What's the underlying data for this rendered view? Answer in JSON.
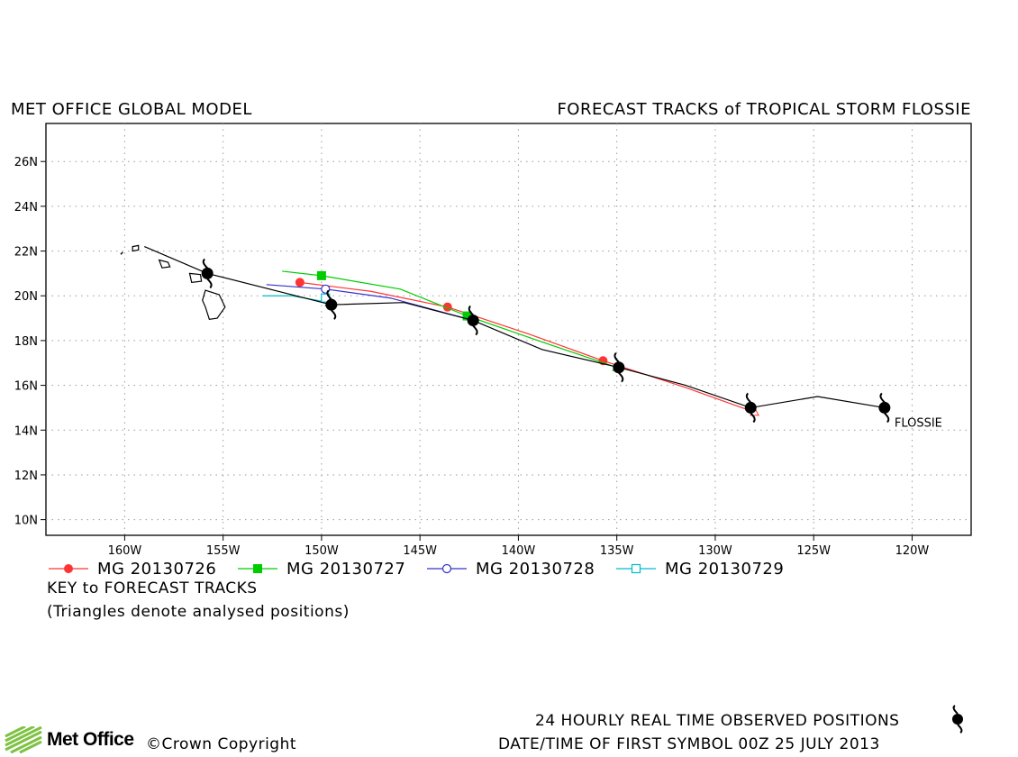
{
  "header": {
    "left_title": "MET OFFICE GLOBAL MODEL",
    "right_title": "FORECAST TRACKS of TROPICAL STORM FLOSSIE"
  },
  "map": {
    "lon_ticks": [
      {
        "value": -160,
        "label": "160W"
      },
      {
        "value": -155,
        "label": "155W"
      },
      {
        "value": -150,
        "label": "150W"
      },
      {
        "value": -145,
        "label": "145W"
      },
      {
        "value": -140,
        "label": "140W"
      },
      {
        "value": -135,
        "label": "135W"
      },
      {
        "value": -130,
        "label": "130W"
      },
      {
        "value": -125,
        "label": "125W"
      },
      {
        "value": -120,
        "label": "120W"
      }
    ],
    "lat_ticks": [
      {
        "value": 10,
        "label": "10N"
      },
      {
        "value": 12,
        "label": "12N"
      },
      {
        "value": 14,
        "label": "14N"
      },
      {
        "value": 16,
        "label": "16N"
      },
      {
        "value": 18,
        "label": "18N"
      },
      {
        "value": 20,
        "label": "20N"
      },
      {
        "value": 22,
        "label": "22N"
      },
      {
        "value": 24,
        "label": "24N"
      },
      {
        "value": 26,
        "label": "26N"
      }
    ],
    "lon_range": [
      -164,
      -117
    ],
    "lat_range": [
      9.3,
      27.7
    ],
    "grid": true,
    "storm_label": "FLOSSIE",
    "observed_track": {
      "color": "#000000",
      "points": [
        [
          -121.4,
          15.0
        ],
        [
          -124.8,
          15.5
        ],
        [
          -128.2,
          15.0
        ],
        [
          -131.5,
          16.0
        ],
        [
          -134.9,
          16.8
        ],
        [
          -138.8,
          17.6
        ],
        [
          -142.3,
          18.9
        ],
        [
          -145.8,
          19.7
        ],
        [
          -149.5,
          19.6
        ],
        [
          -155.8,
          21.0
        ],
        [
          -159.0,
          22.2
        ]
      ],
      "symbols": [
        [
          -121.4,
          15.0
        ],
        [
          -128.2,
          15.0
        ],
        [
          -134.9,
          16.8
        ],
        [
          -142.3,
          18.9
        ],
        [
          -149.5,
          19.6
        ],
        [
          -155.8,
          21.0
        ]
      ]
    },
    "forecasts": [
      {
        "name": "MG 20130726",
        "color": "#ff3333",
        "marker": "filled-circle",
        "points": [
          [
            -128.0,
            14.8
          ],
          [
            -131.5,
            15.9
          ],
          [
            -135.7,
            17.1
          ],
          [
            -139.5,
            18.3
          ],
          [
            -143.6,
            19.5
          ],
          [
            -147.5,
            20.2
          ],
          [
            -151.1,
            20.6
          ]
        ],
        "markers": [
          [
            -135.7,
            17.1
          ],
          [
            -143.6,
            19.5
          ],
          [
            -151.1,
            20.6
          ]
        ]
      },
      {
        "name": "MG 20130727",
        "color": "#00cc00",
        "marker": "filled-square",
        "points": [
          [
            -135.0,
            16.8
          ],
          [
            -139.0,
            18.0
          ],
          [
            -142.6,
            19.1
          ],
          [
            -146.0,
            20.3
          ],
          [
            -150.0,
            20.9
          ],
          [
            -152.0,
            21.1
          ]
        ],
        "markers": [
          [
            -142.6,
            19.1
          ],
          [
            -150.0,
            20.9
          ]
        ]
      },
      {
        "name": "MG 20130728",
        "color": "#3333cc",
        "marker": "open-circle",
        "points": [
          [
            -142.3,
            18.9
          ],
          [
            -146.5,
            19.9
          ],
          [
            -149.8,
            20.3
          ],
          [
            -152.8,
            20.5
          ]
        ],
        "markers": [
          [
            -149.8,
            20.3
          ]
        ]
      },
      {
        "name": "MG 20130729",
        "color": "#00bbcc",
        "marker": "open-square",
        "points": [
          [
            -149.6,
            19.7
          ],
          [
            -151.5,
            20.0
          ],
          [
            -153.0,
            20.0
          ]
        ],
        "markers": [
          [
            -149.8,
            19.9
          ]
        ]
      }
    ]
  },
  "legend": {
    "items": [
      {
        "label": "MG 20130726",
        "color": "#ff3333",
        "marker": "filled-circle"
      },
      {
        "label": "MG 20130727",
        "color": "#00cc00",
        "marker": "filled-square"
      },
      {
        "label": "MG 20130728",
        "color": "#3333cc",
        "marker": "open-circle"
      },
      {
        "label": "MG 20130729",
        "color": "#00bbcc",
        "marker": "open-square"
      }
    ],
    "key_title": "KEY to FORECAST TRACKS",
    "key_note": "(Triangles denote analysed positions)"
  },
  "footer": {
    "observed_note": "24 HOURLY REAL TIME OBSERVED POSITIONS",
    "datetime_note": "DATE/TIME OF FIRST SYMBOL 00Z 25 JULY 2013",
    "logo_text": "Met Office",
    "copyright": "©Crown Copyright"
  }
}
